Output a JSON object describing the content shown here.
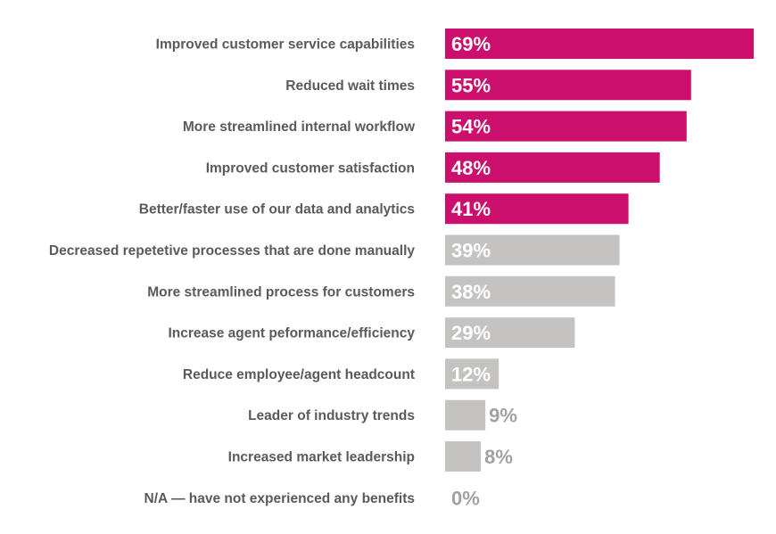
{
  "chart_data": {
    "type": "bar",
    "orientation": "horizontal",
    "title": "",
    "xlabel": "",
    "ylabel": "",
    "xlim": [
      0,
      69
    ],
    "grid": false,
    "categories": [
      "Improved customer service capabilities",
      "Reduced wait times",
      "More streamlined internal workflow",
      "Improved customer satisfaction",
      "Better/faster use of our data and analytics",
      "Decreased repetetive processes that are done manually",
      "More streamlined process for customers",
      "Increase agent peformance/efficiency",
      "Reduce employee/agent headcount",
      "Leader of industry trends",
      "Increased market leadership",
      "N/A — have not experienced any benefits"
    ],
    "values": [
      69,
      55,
      54,
      48,
      41,
      39,
      38,
      29,
      12,
      9,
      8,
      0
    ],
    "value_labels": [
      "69%",
      "55%",
      "54%",
      "48%",
      "41%",
      "39%",
      "38%",
      "29%",
      "12%",
      "9%",
      "8%",
      "0%"
    ],
    "highlighted_count": 5,
    "colors": {
      "highlight": "#CC0F6C",
      "other": "#C5C3C2",
      "outside_label": "#A3A1A0",
      "category_text": "#5A5A5C"
    }
  }
}
